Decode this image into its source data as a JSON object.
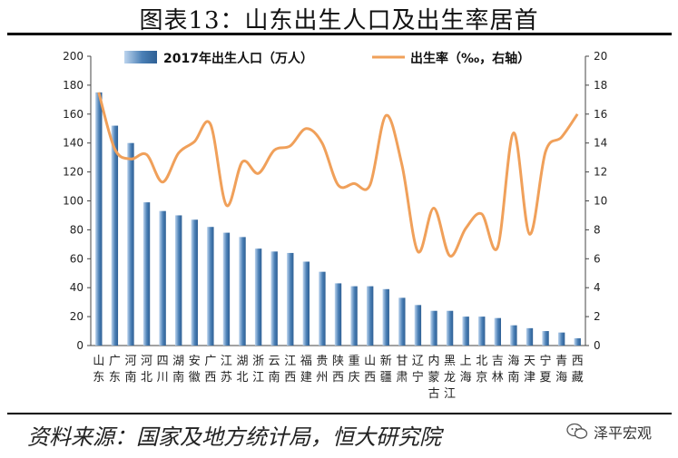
{
  "title": "图表13：山东出生人口及出生率居首",
  "source": "资料来源：国家及地方统计局，恒大研究院",
  "watermark": "泽平宏观",
  "chart_data": {
    "type": "bar+line",
    "title": "图表13：山东出生人口及出生率居首",
    "categories": [
      "山东",
      "广东",
      "河南",
      "河北",
      "四川",
      "湖南",
      "安徽",
      "广西",
      "江苏",
      "湖北",
      "浙江",
      "云南",
      "江西",
      "福建",
      "贵州",
      "陕西",
      "重庆",
      "山西",
      "新疆",
      "甘肃",
      "辽宁",
      "内蒙古",
      "黑龙江",
      "上海",
      "北京",
      "吉林",
      "海南",
      "天津",
      "宁夏",
      "青海",
      "西藏"
    ],
    "series": [
      {
        "name": "2017年出生人口（万人）",
        "kind": "bar",
        "axis": "left",
        "values": [
          175,
          152,
          140,
          99,
          93,
          90,
          87,
          82,
          78,
          75,
          67,
          65,
          64,
          58,
          51,
          43,
          41,
          41,
          39,
          33,
          28,
          24,
          24,
          20,
          20,
          19,
          14,
          12,
          10,
          9,
          5
        ]
      },
      {
        "name": "出生率（‰，右轴）",
        "kind": "line",
        "axis": "right",
        "values": [
          17.5,
          13.6,
          12.9,
          13.2,
          11.3,
          13.3,
          14.1,
          15.3,
          9.7,
          12.7,
          11.9,
          13.5,
          13.8,
          15.0,
          14.0,
          11.1,
          11.2,
          11.1,
          15.9,
          12.5,
          6.5,
          9.5,
          6.2,
          8.1,
          9.1,
          6.8,
          14.7,
          7.7,
          13.4,
          14.4,
          16.0
        ]
      }
    ],
    "left_axis": {
      "min": 0,
      "max": 200,
      "ticks": [
        0,
        20,
        40,
        60,
        80,
        100,
        120,
        140,
        160,
        180,
        200
      ]
    },
    "right_axis": {
      "min": 0,
      "max": 20,
      "ticks": [
        0,
        2,
        4,
        6,
        8,
        10,
        12,
        14,
        16,
        18,
        20
      ]
    },
    "legend_position": "top",
    "colors": {
      "bar": "#4a7fb5",
      "bar_light": "#bcd4ee",
      "line": "#f0a05a"
    }
  }
}
